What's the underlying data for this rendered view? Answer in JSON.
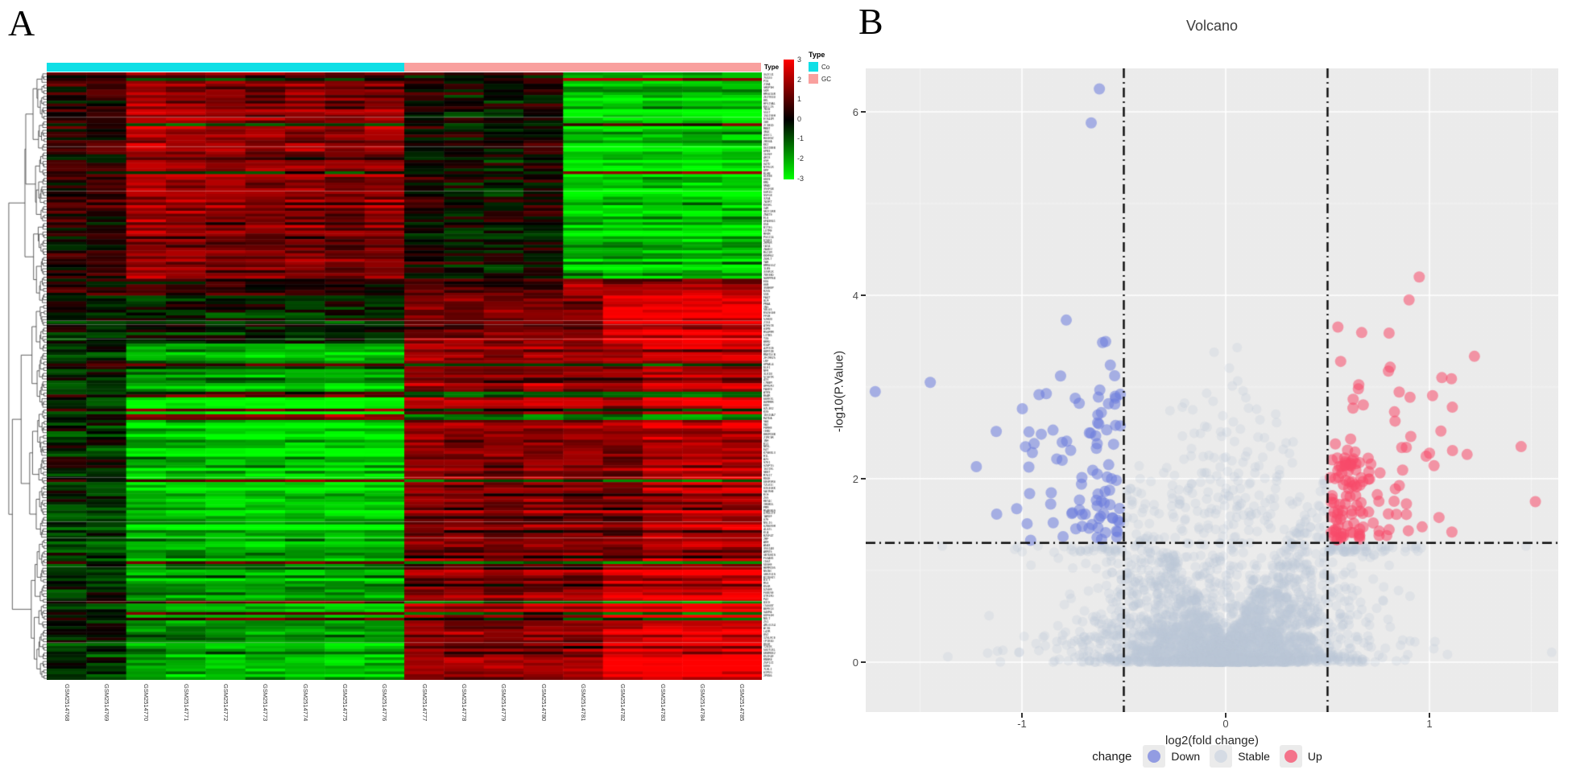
{
  "panels": {
    "a_label": "A",
    "b_label": "B"
  },
  "chart_data": [
    {
      "type": "heatmap",
      "panel": "A",
      "annotation_title": "Type",
      "legend_title": "Type",
      "groups": [
        {
          "label": "Co",
          "color": "#0fdfe6",
          "n_cols": 9
        },
        {
          "label": "GC",
          "color": "#f9a09e",
          "n_cols": 9
        }
      ],
      "colorbar": {
        "ticks": [
          "3",
          "2",
          "1",
          "0",
          "-1",
          "-2",
          "-3"
        ],
        "domain": [
          3,
          -3
        ],
        "top_color": "#ff0000",
        "mid_color": "#000000",
        "bottom_color": "#00ff00"
      },
      "samples": [
        "GSM2514768",
        "GSM2514769",
        "GSM2514770",
        "GSM2514771",
        "GSM2514772",
        "GSM2514773",
        "GSM2514774",
        "GSM2514775",
        "GSM2514776",
        "GSM2514777",
        "GSM2514778",
        "GSM2514779",
        "GSM2514780",
        "GSM2514781",
        "GSM2514782",
        "GSM2514783",
        "GSM2514784",
        "GSM2514785"
      ],
      "n_rows": 215,
      "row_label_count": 190,
      "pattern_summary": "Co samples: upregulated (red) block in top third, downregulated (green) block below; GC samples: mirrored - green top-right block, red lower-right blocks"
    },
    {
      "type": "scatter",
      "panel": "B",
      "title": "Volcano",
      "xlabel": "log2(fold change)",
      "ylabel": "-log10(P.Value)",
      "xticks": [
        -1,
        0,
        1
      ],
      "yticks": [
        0,
        2,
        4,
        6
      ],
      "xlim": [
        -1.77,
        1.63
      ],
      "ylim": [
        -0.55,
        6.45
      ],
      "minor_xticks": [
        -1.5,
        -0.5,
        0.5,
        1.5
      ],
      "minor_yticks": [
        1,
        3,
        5
      ],
      "threshold_vlines_x": [
        -0.5,
        0.5
      ],
      "threshold_hline_y": 1.301,
      "legend_title": "change",
      "series": [
        {
          "name": "Down",
          "color": "#7482df",
          "n": 105,
          "x_range": [
            -1.8,
            -0.5
          ],
          "y_range": [
            1.3,
            6.3
          ]
        },
        {
          "name": "Stable",
          "color": "#cdd6e2",
          "n": 3200,
          "x_range": [
            -1.75,
            1.6
          ],
          "y_range": [
            0,
            4.6
          ]
        },
        {
          "name": "Up",
          "color": "#f74b69",
          "n": 150,
          "x_range": [
            0.5,
            1.62
          ],
          "y_range": [
            1.3,
            4.25
          ]
        }
      ],
      "notable_points": {
        "down_outliers": [
          [
            -0.62,
            6.25
          ],
          [
            -0.66,
            5.88
          ],
          [
            -1.72,
            2.95
          ],
          [
            -1.45,
            3.05
          ]
        ],
        "up_outliers": [
          [
            0.95,
            4.2
          ],
          [
            0.9,
            3.95
          ],
          [
            1.52,
            1.75
          ],
          [
            1.45,
            2.35
          ]
        ]
      },
      "grid": true,
      "legend_position": "bottom",
      "plot_bg": "#ebebeb"
    }
  ]
}
